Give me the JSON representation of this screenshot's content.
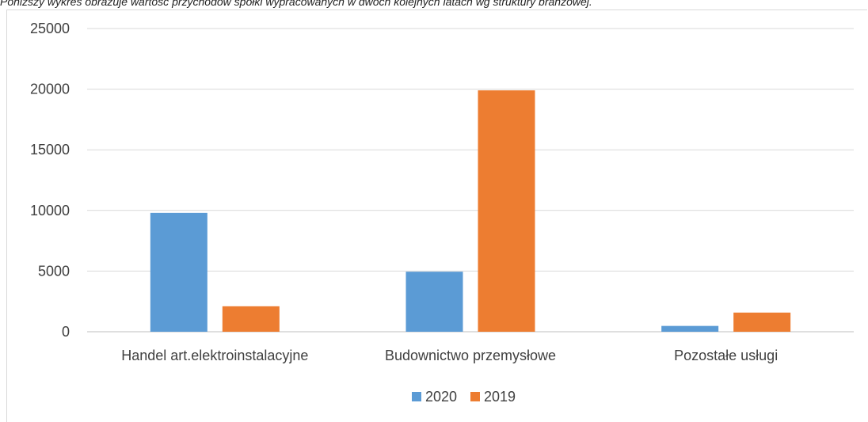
{
  "caption": "Poniższy wykres obrazuje wartość przychodów spółki wypracowanych w dwóch kolejnych latach wg struktury branżowej.",
  "chart_data": {
    "type": "bar",
    "categories": [
      "Handel art.elektroinstalacyjne",
      "Budownictwo przemysłowe",
      "Pozostałe usługi"
    ],
    "series": [
      {
        "name": "2020",
        "color": "#5b9bd5",
        "values": [
          9800,
          4950,
          480
        ]
      },
      {
        "name": "2019",
        "color": "#ed7d31",
        "values": [
          2100,
          19900,
          1580
        ]
      }
    ],
    "title": "",
    "xlabel": "",
    "ylabel": "",
    "ylim": [
      0,
      25000
    ],
    "yticks": [
      0,
      5000,
      10000,
      15000,
      20000,
      25000
    ],
    "grid": true,
    "legend_position": "bottom"
  }
}
